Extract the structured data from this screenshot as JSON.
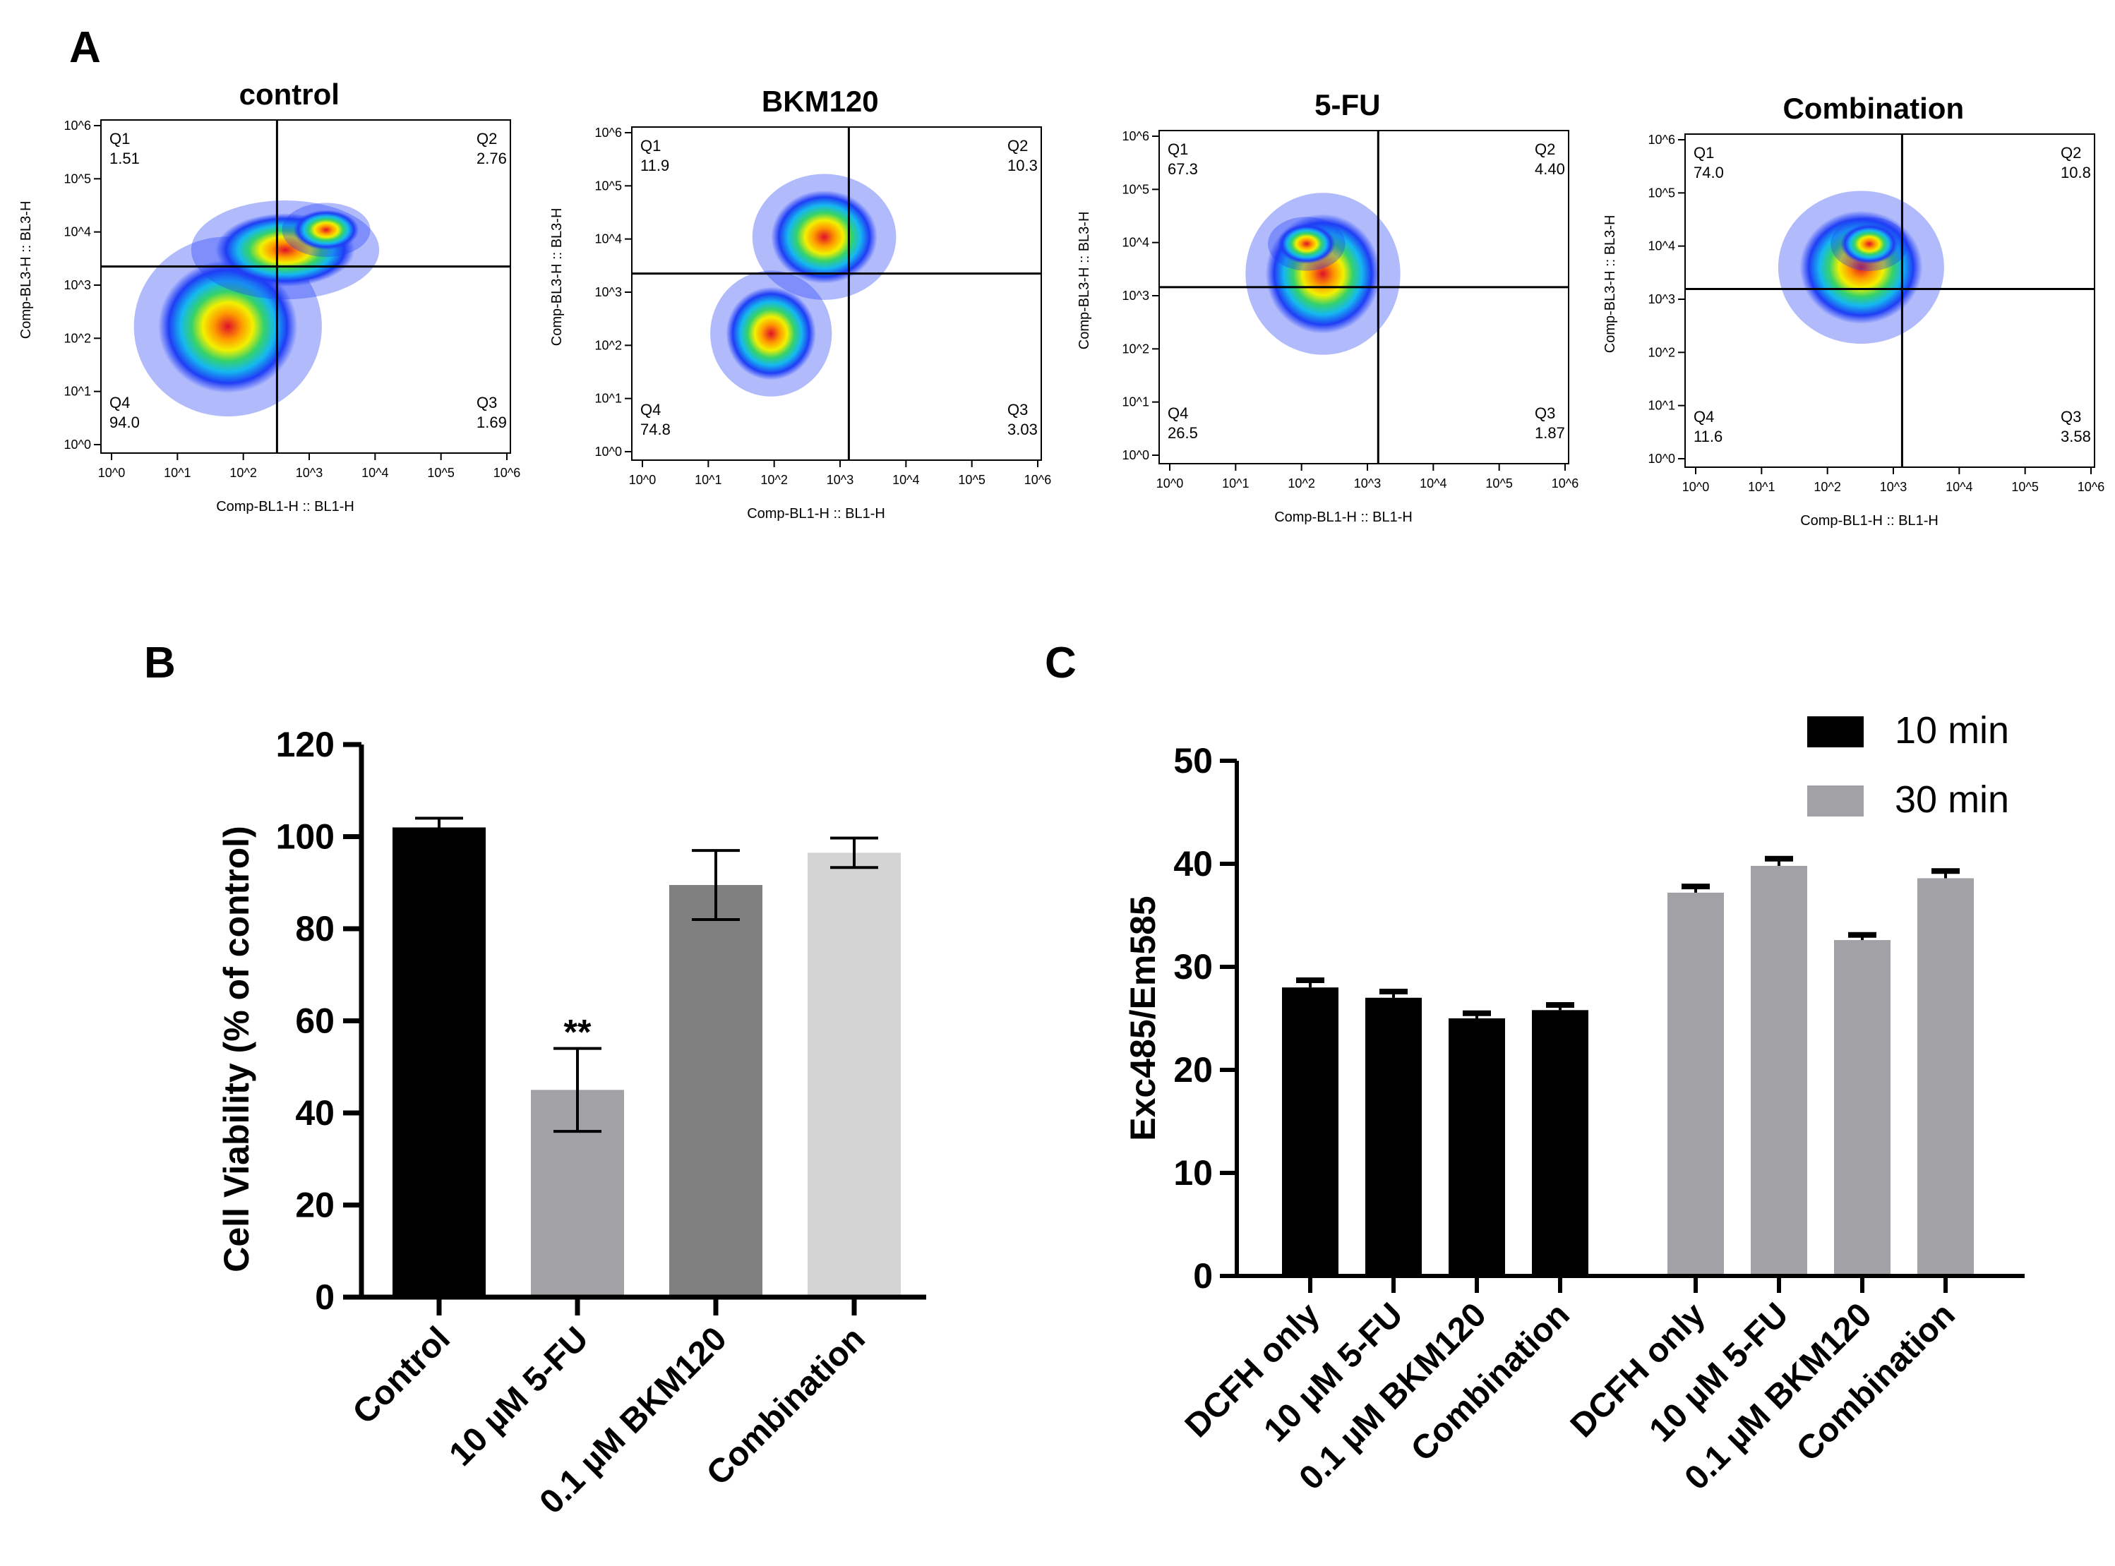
{
  "panels": {
    "a": {
      "letter": "A"
    },
    "b": {
      "letter": "B"
    },
    "c": {
      "letter": "C"
    }
  },
  "flow": {
    "x_axis_label": "Comp-BL1-H :: BL1-H",
    "y_axis_label": "Comp-BL3-H :: BL3-H",
    "tick_labels": [
      "10^0",
      "10^1",
      "10^2",
      "10^3",
      "10^4",
      "10^5",
      "10^6"
    ],
    "plots": [
      {
        "title": "control",
        "q1": {
          "label": "Q1",
          "value": "1.51"
        },
        "q2": {
          "label": "Q2",
          "value": "2.76"
        },
        "q3": {
          "label": "Q3",
          "value": "1.69"
        },
        "q4": {
          "label": "Q4",
          "value": "94.0"
        }
      },
      {
        "title": "BKM120",
        "q1": {
          "label": "Q1",
          "value": "11.9"
        },
        "q2": {
          "label": "Q2",
          "value": "10.3"
        },
        "q3": {
          "label": "Q3",
          "value": "3.03"
        },
        "q4": {
          "label": "Q4",
          "value": "74.8"
        }
      },
      {
        "title": "5-FU",
        "q1": {
          "label": "Q1",
          "value": "67.3"
        },
        "q2": {
          "label": "Q2",
          "value": "4.40"
        },
        "q3": {
          "label": "Q3",
          "value": "1.87"
        },
        "q4": {
          "label": "Q4",
          "value": "26.5"
        }
      },
      {
        "title": "Combination",
        "q1": {
          "label": "Q1",
          "value": "74.0"
        },
        "q2": {
          "label": "Q2",
          "value": "10.8"
        },
        "q3": {
          "label": "Q3",
          "value": "3.58"
        },
        "q4": {
          "label": "Q4",
          "value": "11.6"
        }
      }
    ]
  },
  "colors": {
    "black_bar": "#000000",
    "gray_bar": "#a2a2a6",
    "dark_gray_bar": "#808080",
    "light_gray_bar": "#d4d4d4",
    "density_low": "#1f3df5",
    "density_high": "#e0102a"
  },
  "chart_data": [
    {
      "type": "bar",
      "panel": "B",
      "categories": [
        "Control",
        "10 µM 5-FU",
        "0.1 µM BKM120",
        "Combination"
      ],
      "values": [
        102,
        45,
        89.5,
        96.5
      ],
      "errors": [
        2,
        9,
        7.5,
        3.2
      ],
      "significance": [
        "",
        "**",
        "",
        ""
      ],
      "ylabel": "Cell Viability (% of control)",
      "xlabel": "",
      "ylim": [
        0,
        120
      ],
      "yticks": [
        0,
        20,
        40,
        60,
        80,
        100,
        120
      ]
    },
    {
      "type": "bar",
      "panel": "C",
      "categories": [
        "DCFH only",
        "10 µM 5-FU",
        "0.1 µM BKM120",
        "Combination"
      ],
      "series": [
        {
          "name": "10 min",
          "values": [
            28,
            27,
            25,
            25.8
          ],
          "errors": [
            0.7,
            0.6,
            0.5,
            0.5
          ]
        },
        {
          "name": "30 min",
          "values": [
            37.2,
            39.8,
            32.6,
            38.6
          ],
          "errors": [
            0.6,
            0.7,
            0.5,
            0.7
          ]
        }
      ],
      "ylabel": "Exc485/Em585",
      "xlabel": "",
      "ylim": [
        0,
        50
      ],
      "yticks": [
        0,
        10,
        20,
        30,
        40,
        50
      ],
      "legend_position": "top-right"
    }
  ]
}
